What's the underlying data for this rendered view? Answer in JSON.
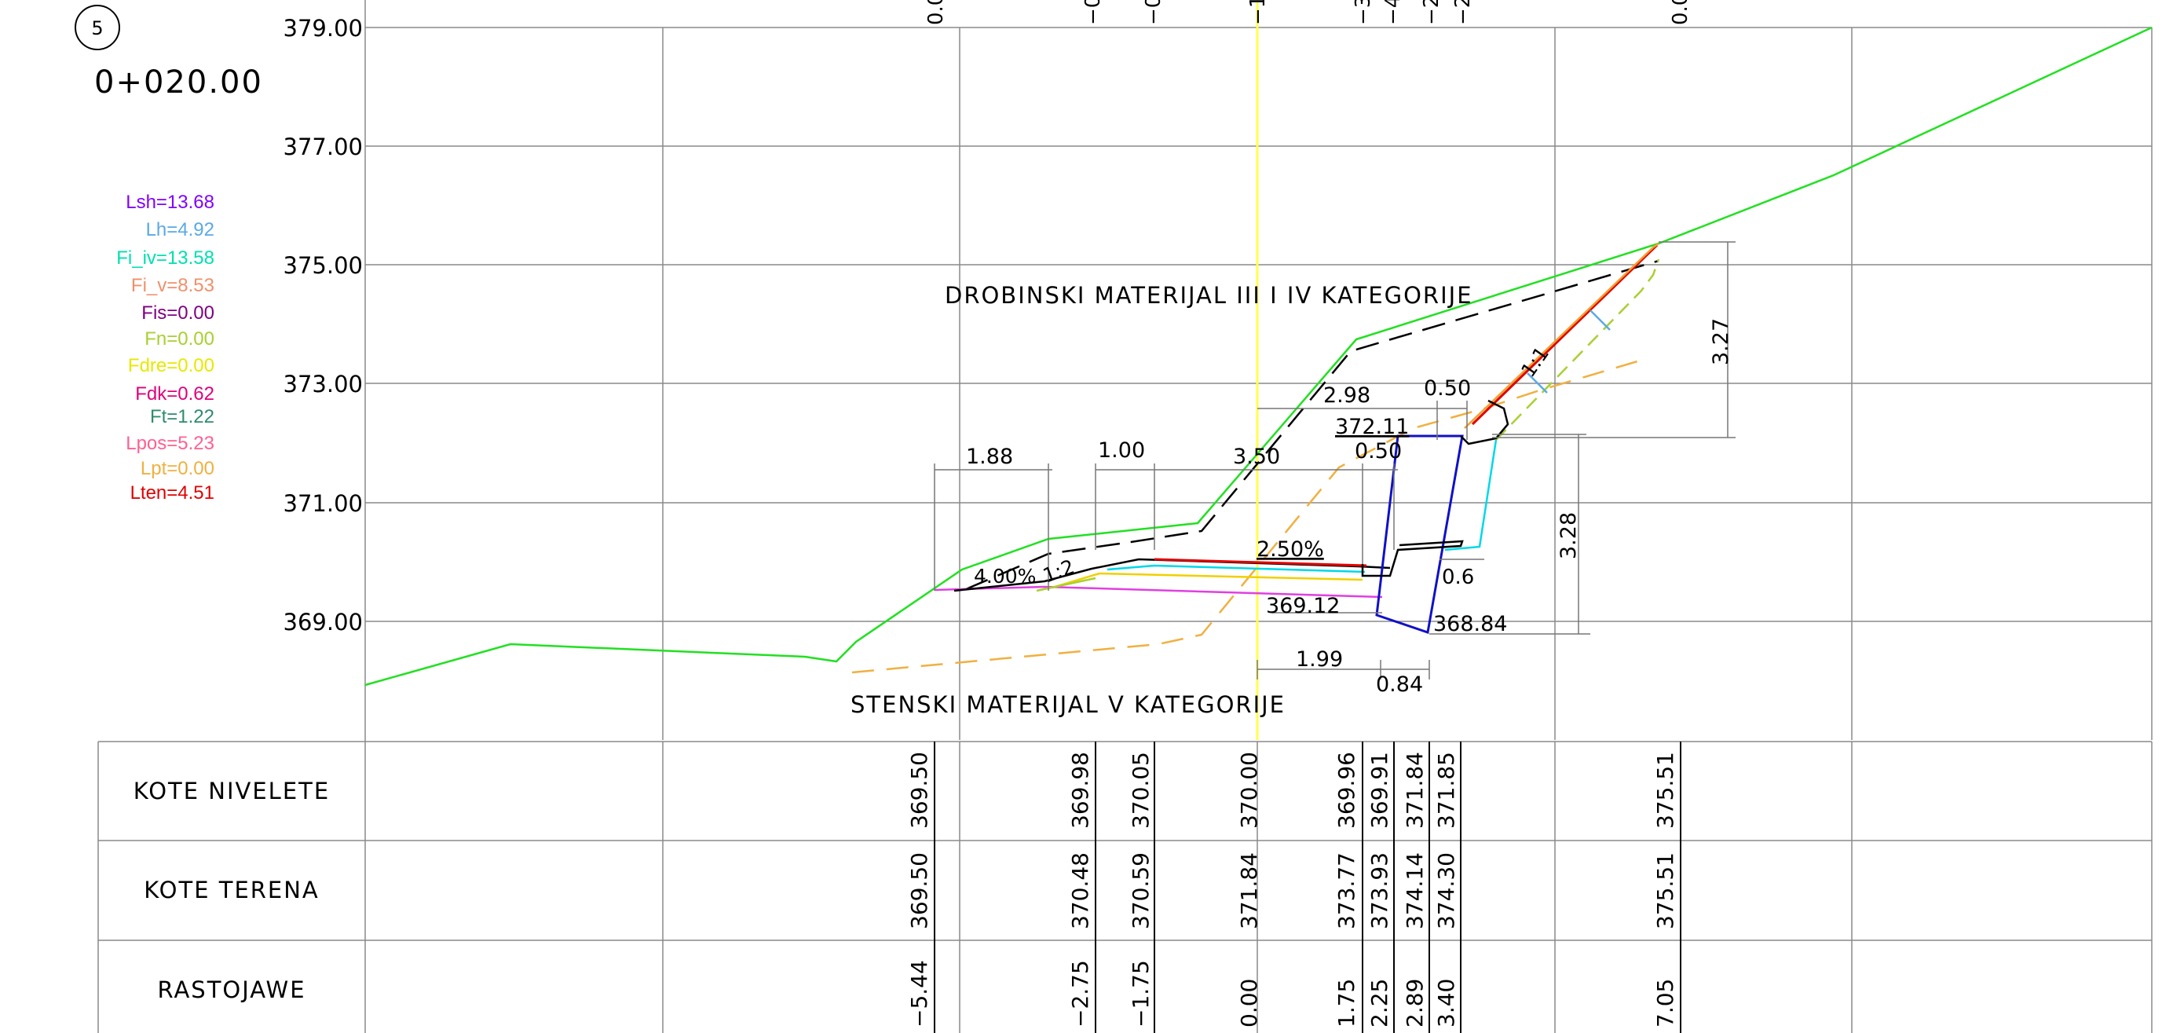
{
  "section": {
    "number": "5",
    "station": "0+020.00"
  },
  "elevation_labels": [
    "379.00",
    "377.00",
    "375.00",
    "373.00",
    "371.00",
    "369.00"
  ],
  "legend": [
    {
      "text": "Lsh=13.68",
      "color": "#8000ff"
    },
    {
      "text": "Lh=4.92",
      "color": "#5aa9e6"
    },
    {
      "text": "Fi_iv=13.58",
      "color": "#00e0b0"
    },
    {
      "text": "Fi_v=8.53",
      "color": "#f0906a"
    },
    {
      "text": "Fis=0.00",
      "color": "#800080"
    },
    {
      "text": "Fn=0.00",
      "color": "#a8d030"
    },
    {
      "text": "Fdre=0.00",
      "color": "#e8e800"
    },
    {
      "text": "Fdk=0.62",
      "color": "#e0007a"
    },
    {
      "text": "Ft=1.22",
      "color": "#2e8b6e"
    },
    {
      "text": "Lpos=5.23",
      "color": "#ff6090"
    },
    {
      "text": "Lpt=0.00",
      "color": "#f0b040"
    },
    {
      "text": "Lten=4.51",
      "color": "#e00000"
    }
  ],
  "material_labels": {
    "upper": "DROBINSKI MATERIJAL III I IV KATEGORIJE",
    "lower": "STENSKI MATERIJAL V KATEGORIJE"
  },
  "annotations": {
    "dim_1_88": "1.88",
    "dim_1_00": "1.00",
    "dim_3_50": "3.50",
    "dim_0_50_upper": "0.50",
    "dim_0_50_lower": "0.50",
    "dim_2_98": "2.98",
    "elev_372_11": "372.11",
    "dim_3_27": "3.27",
    "dim_3_28": "3.28",
    "slope_2_50": "2.50%",
    "slope_4_00": "4.00%",
    "slope_1_2": "1:2",
    "slope_1_1": "1:1",
    "dim_0_6": "0.6",
    "elev_369_12": "369.12",
    "elev_368_84": "368.84",
    "dim_1_99": "1.99",
    "dim_0_84": "0.84"
  },
  "top_marks": [
    "0.0",
    "−0",
    "−0",
    "−1",
    "−3",
    "−4",
    "−2",
    "−2",
    "0.0"
  ],
  "table": {
    "rows": [
      "KOTE NIVELETE",
      "KOTE TERENA",
      "RASTOJAWE"
    ],
    "columns": [
      {
        "nivelete": "369.50",
        "terena": "369.50",
        "rastojanje": "−5.44"
      },
      {
        "nivelete": "369.98",
        "terena": "370.48",
        "rastojanje": "−2.75"
      },
      {
        "nivelete": "370.05",
        "terena": "370.59",
        "rastojanje": "−1.75"
      },
      {
        "nivelete": "370.00",
        "terena": "371.84",
        "rastojanje": "0.00"
      },
      {
        "nivelete": "369.96",
        "terena": "373.77",
        "rastojanje": "1.75"
      },
      {
        "nivelete": "369.91",
        "terena": "373.93",
        "rastojanje": "2.25"
      },
      {
        "nivelete": "371.84",
        "terena": "374.14",
        "rastojanje": "2.89"
      },
      {
        "nivelete": "371.85",
        "terena": "374.30",
        "rastojanje": "3.40"
      },
      {
        "nivelete": "375.51",
        "terena": "375.51",
        "rastojanje": "7.05"
      }
    ]
  },
  "colors": {
    "terrain": "#22e022",
    "centerline": "#ffff50",
    "grid": "#8a8a8a",
    "rock_line": "#f0b040",
    "wall": "#1010c8",
    "drain": "#00d8e8",
    "subgrade": "#e040e0",
    "pavement": "#e00000"
  }
}
